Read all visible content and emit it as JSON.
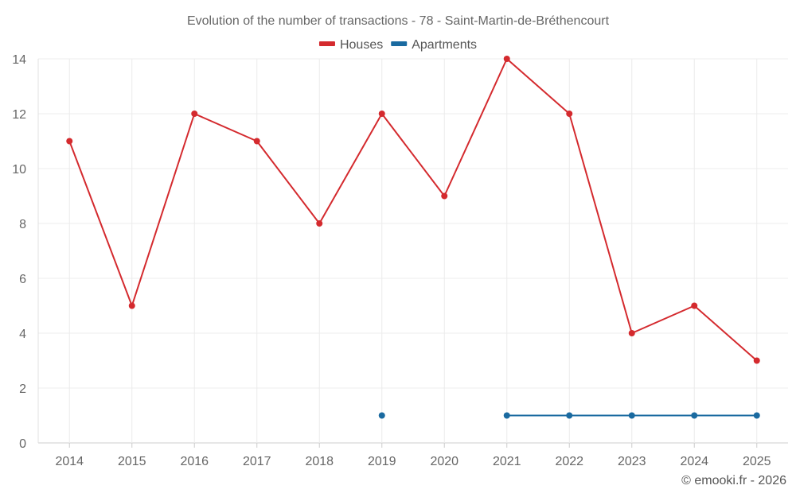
{
  "chart_data": {
    "type": "line",
    "title": "Evolution of the number of transactions - 78 - Saint-Martin-de-Bréthencourt",
    "categories": [
      "2014",
      "2015",
      "2016",
      "2017",
      "2018",
      "2019",
      "2020",
      "2021",
      "2022",
      "2023",
      "2024",
      "2025"
    ],
    "series": [
      {
        "name": "Houses",
        "color": "#d42a2e",
        "values": [
          11,
          5,
          12,
          11,
          8,
          12,
          9,
          14,
          12,
          4,
          5,
          3
        ]
      },
      {
        "name": "Apartments",
        "color": "#1a6aa0",
        "values": [
          null,
          null,
          null,
          null,
          null,
          1,
          null,
          1,
          1,
          1,
          1,
          1
        ]
      }
    ],
    "ylim": [
      0,
      14
    ],
    "yticks": [
      "0",
      "2",
      "4",
      "6",
      "8",
      "10",
      "12",
      "14"
    ],
    "xlabel": "",
    "ylabel": "",
    "grid": true,
    "legend": "top-center"
  },
  "credit": "© emooki.fr - 2026"
}
